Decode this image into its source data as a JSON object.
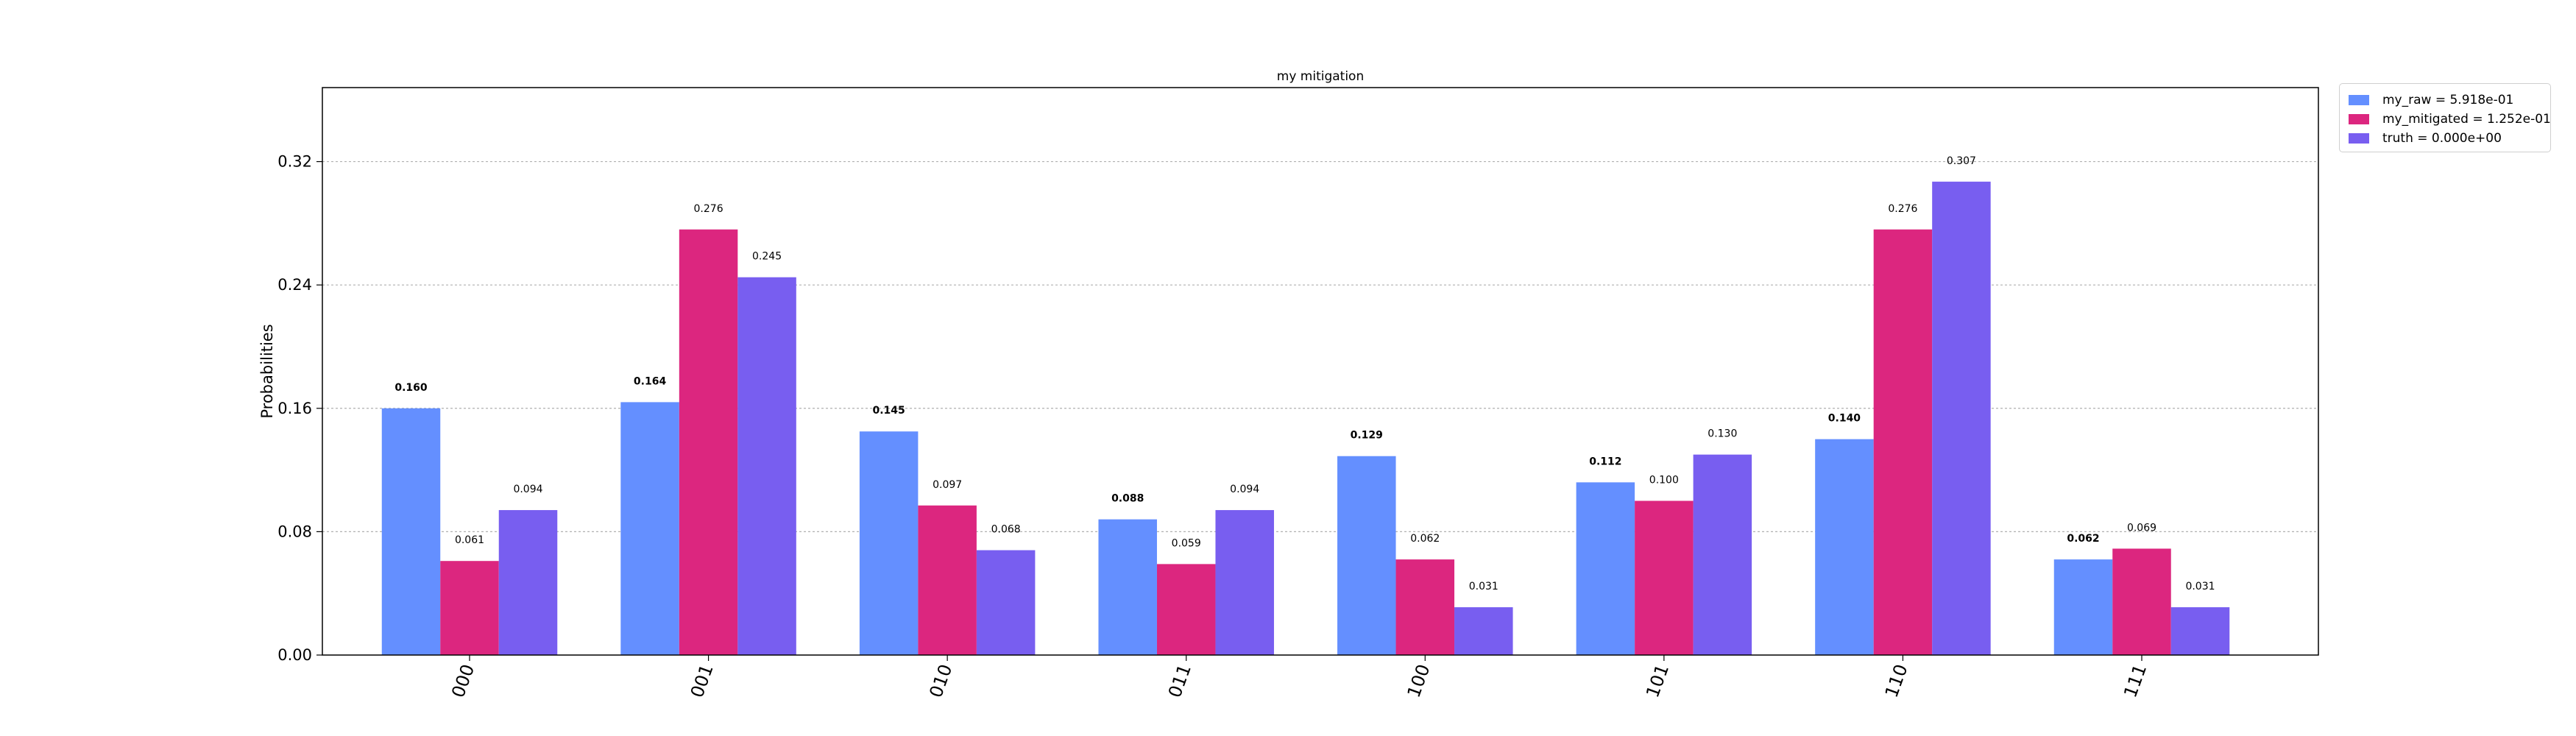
{
  "chart_data": {
    "type": "bar",
    "title": "my mitigation",
    "ylabel": "Probabilities",
    "xlabel": "",
    "categories": [
      "000",
      "001",
      "010",
      "011",
      "100",
      "101",
      "110",
      "111"
    ],
    "series": [
      {
        "name": "my_raw = 5.918e-01",
        "color": "#648fff",
        "values": [
          0.16,
          0.164,
          0.145,
          0.088,
          0.129,
          0.112,
          0.14,
          0.062
        ],
        "labels": [
          "0.160",
          "0.164",
          "0.145",
          "0.088",
          "0.129",
          "0.112",
          "0.140",
          "0.062"
        ]
      },
      {
        "name": "my_mitigated = 1.252e-01",
        "color": "#dc267f",
        "values": [
          0.061,
          0.276,
          0.097,
          0.059,
          0.062,
          0.1,
          0.276,
          0.069
        ],
        "labels": [
          "0.061",
          "0.276",
          "0.097",
          "0.059",
          "0.062",
          "0.100",
          "0.276",
          "0.069"
        ]
      },
      {
        "name": "truth = 0.000e+00",
        "color": "#785ef0",
        "values": [
          0.094,
          0.245,
          0.068,
          0.094,
          0.031,
          0.13,
          0.307,
          0.031
        ],
        "labels": [
          "0.094",
          "0.245",
          "0.068",
          "0.094",
          "0.031",
          "0.130",
          "0.307",
          "0.031"
        ]
      }
    ],
    "ylim": [
      0,
      0.368
    ],
    "yticks": [
      0.0,
      0.08,
      0.16,
      0.24,
      0.32
    ],
    "ytick_labels": [
      "0.00",
      "0.08",
      "0.16",
      "0.24",
      "0.32"
    ],
    "grid": "horizontal dashed",
    "legend_position": "outside top-right",
    "xtick_rotation": -70
  }
}
